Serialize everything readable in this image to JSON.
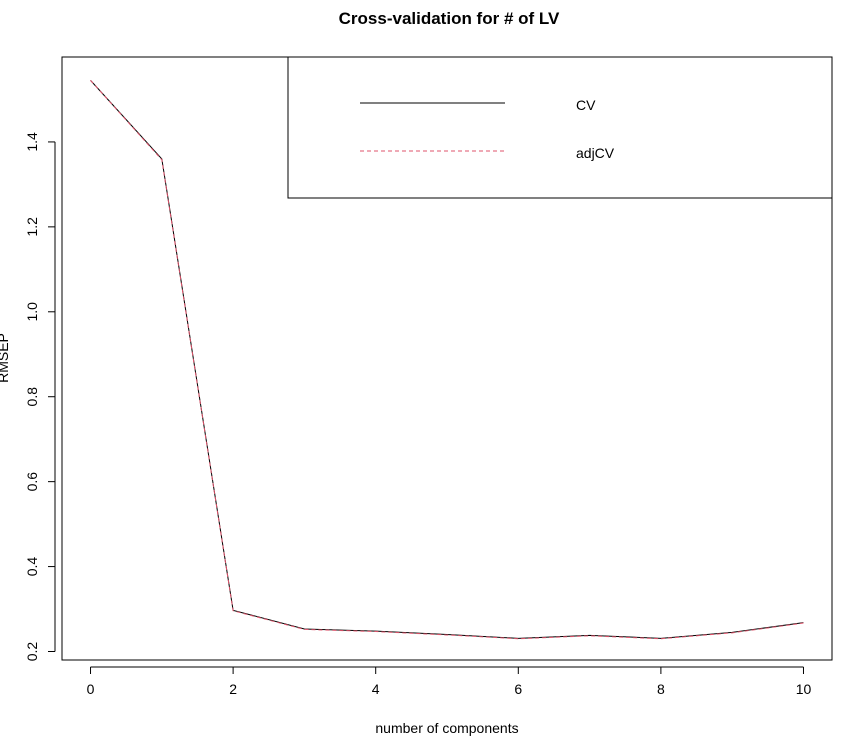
{
  "chart_data": {
    "type": "line",
    "title": "Cross-validation for # of LV",
    "xlabel": "number of components",
    "ylabel": "RMSEP",
    "x": [
      0,
      1,
      2,
      3,
      4,
      5,
      6,
      7,
      8,
      9,
      10
    ],
    "xlim": [
      -0.4,
      10.4
    ],
    "ylim": [
      0.18,
      1.6
    ],
    "x_ticks": [
      0,
      2,
      4,
      6,
      8,
      10
    ],
    "y_ticks": [
      0.2,
      0.4,
      0.6,
      0.8,
      1.0,
      1.2,
      1.4
    ],
    "x_tick_labels": [
      "0",
      "2",
      "4",
      "6",
      "8",
      "10"
    ],
    "y_tick_labels": [
      "0.2",
      "0.4",
      "0.6",
      "0.8",
      "1.0",
      "1.2",
      "1.4"
    ],
    "legend_position": "top-right",
    "series": [
      {
        "name": "CV",
        "color": "#000000",
        "dash": "solid",
        "values": [
          1.545,
          1.36,
          0.297,
          0.253,
          0.248,
          0.24,
          0.231,
          0.238,
          0.231,
          0.245,
          0.268
        ]
      },
      {
        "name": "adjCV",
        "color": "#df536b",
        "dash": "dashed",
        "values": [
          1.545,
          1.358,
          0.296,
          0.252,
          0.247,
          0.239,
          0.23,
          0.237,
          0.23,
          0.244,
          0.267
        ]
      }
    ]
  }
}
